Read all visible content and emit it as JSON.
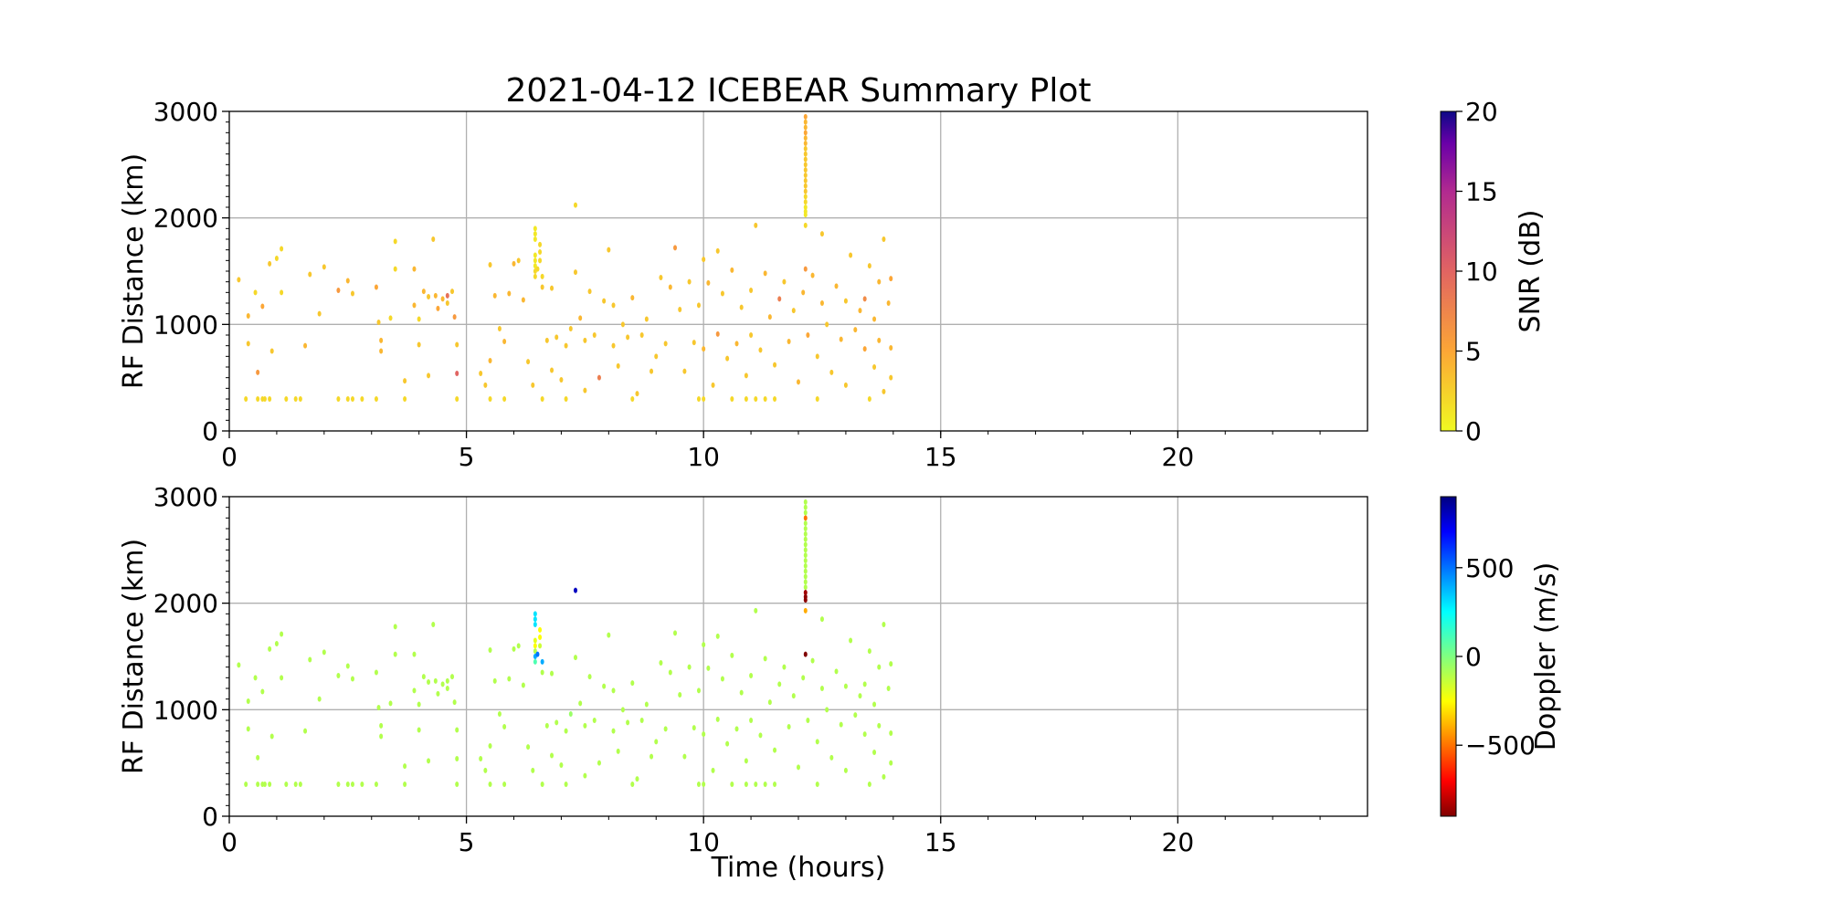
{
  "chart_data": {
    "type": "scatter",
    "title": "2021-04-12 ICEBEAR Summary Plot",
    "xlabel": "Time (hours)",
    "xlim": [
      0,
      24
    ],
    "x_ticks": [
      0,
      5,
      10,
      15,
      20
    ],
    "grid": true,
    "panels": [
      {
        "ylabel": "RF Distance (km)",
        "ylim": [
          0,
          3000
        ],
        "y_ticks": [
          0,
          1000,
          2000,
          3000
        ],
        "color_by": "snr",
        "colorbar": {
          "label": "SNR (dB)",
          "range": [
            0,
            20
          ],
          "ticks": [
            0,
            5,
            10,
            15,
            20
          ],
          "colormap": "plasma_r"
        }
      },
      {
        "ylabel": "RF Distance (km)",
        "ylim": [
          0,
          3000
        ],
        "y_ticks": [
          0,
          1000,
          2000,
          3000
        ],
        "color_by": "doppler",
        "colorbar": {
          "label": "Doppler (m/s)",
          "range": [
            -900,
            900
          ],
          "ticks": [
            -500,
            0,
            500
          ],
          "tick_labels": [
            "−500",
            "0",
            "500"
          ],
          "colormap": "jet"
        }
      }
    ],
    "point_fields": [
      "time_hours",
      "rf_distance_km",
      "snr_db",
      "doppler_ms"
    ],
    "points": [
      [
        0.35,
        300,
        2,
        -100
      ],
      [
        0.6,
        300,
        2,
        -100
      ],
      [
        0.7,
        300,
        2,
        -100
      ],
      [
        0.75,
        300,
        2,
        -100
      ],
      [
        0.85,
        300,
        2,
        -100
      ],
      [
        1.2,
        300,
        2,
        -100
      ],
      [
        1.4,
        300,
        2,
        -100
      ],
      [
        1.5,
        300,
        2,
        -100
      ],
      [
        2.3,
        300,
        2,
        -100
      ],
      [
        2.5,
        300,
        2,
        -100
      ],
      [
        2.6,
        300,
        2,
        -100
      ],
      [
        2.8,
        300,
        2,
        -100
      ],
      [
        3.1,
        300,
        2,
        -100
      ],
      [
        3.7,
        300,
        2,
        -100
      ],
      [
        4.8,
        300,
        2,
        -100
      ],
      [
        5.5,
        300,
        2,
        -100
      ],
      [
        5.8,
        300,
        2,
        -100
      ],
      [
        6.6,
        300,
        2,
        -100
      ],
      [
        7.1,
        300,
        2,
        -100
      ],
      [
        8.5,
        300,
        2,
        -100
      ],
      [
        9.9,
        300,
        2,
        -100
      ],
      [
        10.0,
        300,
        2,
        -100
      ],
      [
        10.6,
        300,
        2,
        -100
      ],
      [
        10.9,
        300,
        2,
        -100
      ],
      [
        11.1,
        300,
        2,
        -100
      ],
      [
        11.3,
        300,
        2,
        -100
      ],
      [
        11.5,
        300,
        2,
        -100
      ],
      [
        12.4,
        300,
        2,
        -100
      ],
      [
        13.5,
        300,
        2,
        -100
      ],
      [
        0.2,
        1420,
        3,
        -100
      ],
      [
        0.4,
        1080,
        4,
        -100
      ],
      [
        0.4,
        820,
        3,
        -100
      ],
      [
        0.55,
        1300,
        2,
        -100
      ],
      [
        0.6,
        550,
        6,
        -100
      ],
      [
        0.7,
        1170,
        5,
        -100
      ],
      [
        0.85,
        1570,
        3,
        -100
      ],
      [
        0.9,
        750,
        3,
        -100
      ],
      [
        1.0,
        1620,
        2,
        -100
      ],
      [
        1.1,
        1300,
        2,
        -100
      ],
      [
        1.1,
        1710,
        2,
        -100
      ],
      [
        1.6,
        800,
        4,
        -100
      ],
      [
        1.7,
        1470,
        3,
        -100
      ],
      [
        1.9,
        1100,
        3,
        -100
      ],
      [
        2.0,
        1540,
        3,
        -100
      ],
      [
        2.3,
        1320,
        6,
        -100
      ],
      [
        2.5,
        1410,
        4,
        -100
      ],
      [
        2.6,
        1290,
        3,
        -100
      ],
      [
        3.1,
        1350,
        5,
        -100
      ],
      [
        3.15,
        1020,
        3,
        -100
      ],
      [
        3.2,
        850,
        4,
        -100
      ],
      [
        3.2,
        750,
        4,
        -100
      ],
      [
        3.4,
        1060,
        2,
        -100
      ],
      [
        3.5,
        1520,
        2,
        -100
      ],
      [
        3.5,
        1780,
        2,
        -100
      ],
      [
        3.7,
        470,
        3,
        -100
      ],
      [
        3.9,
        1520,
        4,
        -100
      ],
      [
        3.9,
        1180,
        4,
        -100
      ],
      [
        4.0,
        810,
        3,
        -100
      ],
      [
        4.0,
        1050,
        2,
        -100
      ],
      [
        4.1,
        1310,
        4,
        -100
      ],
      [
        4.2,
        1260,
        3,
        -100
      ],
      [
        4.2,
        520,
        3,
        -100
      ],
      [
        4.3,
        1800,
        3,
        -100
      ],
      [
        4.35,
        1270,
        4,
        -100
      ],
      [
        4.4,
        1150,
        5,
        -100
      ],
      [
        4.5,
        1240,
        4,
        -100
      ],
      [
        4.6,
        1270,
        9,
        -100
      ],
      [
        4.6,
        1200,
        3,
        -100
      ],
      [
        4.7,
        1310,
        3,
        -100
      ],
      [
        4.75,
        1070,
        6,
        -100
      ],
      [
        4.8,
        810,
        3,
        -100
      ],
      [
        4.8,
        540,
        10,
        -100
      ],
      [
        5.3,
        540,
        3,
        -100
      ],
      [
        5.4,
        430,
        3,
        -100
      ],
      [
        5.5,
        1560,
        3,
        -100
      ],
      [
        5.5,
        660,
        4,
        -100
      ],
      [
        5.6,
        1270,
        4,
        -100
      ],
      [
        5.7,
        960,
        3,
        -100
      ],
      [
        5.8,
        840,
        4,
        -100
      ],
      [
        5.9,
        1290,
        4,
        -100
      ],
      [
        6.0,
        1570,
        4,
        -100
      ],
      [
        6.1,
        1600,
        3,
        -100
      ],
      [
        6.2,
        1230,
        4,
        -100
      ],
      [
        6.3,
        650,
        3,
        -100
      ],
      [
        6.4,
        430,
        3,
        -100
      ],
      [
        6.6,
        1350,
        3,
        -100
      ],
      [
        6.7,
        850,
        3,
        -100
      ],
      [
        6.8,
        1340,
        3,
        -100
      ],
      [
        6.8,
        570,
        3,
        -100
      ],
      [
        6.9,
        880,
        3,
        -100
      ],
      [
        7.0,
        480,
        3,
        -100
      ],
      [
        7.1,
        800,
        3,
        -100
      ],
      [
        7.2,
        960,
        3,
        -50
      ],
      [
        7.3,
        1490,
        3,
        -100
      ],
      [
        7.3,
        2120,
        2,
        800
      ],
      [
        7.4,
        1060,
        4,
        -100
      ],
      [
        7.5,
        850,
        3,
        -100
      ],
      [
        7.5,
        380,
        3,
        -100
      ],
      [
        7.6,
        1310,
        3,
        -100
      ],
      [
        7.7,
        900,
        3,
        -100
      ],
      [
        7.8,
        500,
        8,
        -100
      ],
      [
        7.9,
        1220,
        3,
        -100
      ],
      [
        8.0,
        1700,
        3,
        -100
      ],
      [
        8.1,
        800,
        3,
        -100
      ],
      [
        8.1,
        1180,
        3,
        -100
      ],
      [
        8.2,
        610,
        3,
        -100
      ],
      [
        8.3,
        1000,
        3,
        -100
      ],
      [
        8.4,
        880,
        3,
        -100
      ],
      [
        8.5,
        1250,
        4,
        -100
      ],
      [
        8.6,
        350,
        3,
        -100
      ],
      [
        8.7,
        900,
        3,
        -100
      ],
      [
        8.8,
        1050,
        3,
        -100
      ],
      [
        8.9,
        560,
        3,
        -100
      ],
      [
        9.0,
        700,
        3,
        -100
      ],
      [
        9.1,
        1440,
        3,
        -100
      ],
      [
        9.2,
        820,
        3,
        -100
      ],
      [
        9.3,
        1350,
        4,
        -100
      ],
      [
        9.4,
        1720,
        6,
        -100
      ],
      [
        9.5,
        1140,
        3,
        -100
      ],
      [
        9.6,
        560,
        3,
        -100
      ],
      [
        9.7,
        1400,
        3,
        -100
      ],
      [
        9.8,
        830,
        3,
        -100
      ],
      [
        9.9,
        1180,
        3,
        -100
      ],
      [
        10.0,
        1610,
        3,
        -100
      ],
      [
        10.0,
        770,
        4,
        -100
      ],
      [
        10.1,
        1390,
        4,
        -100
      ],
      [
        10.2,
        430,
        3,
        -100
      ],
      [
        10.3,
        1690,
        3,
        -100
      ],
      [
        10.3,
        910,
        6,
        -100
      ],
      [
        10.4,
        1290,
        3,
        -100
      ],
      [
        10.5,
        680,
        3,
        -100
      ],
      [
        10.6,
        1510,
        4,
        -100
      ],
      [
        10.7,
        820,
        4,
        -100
      ],
      [
        10.8,
        1160,
        3,
        -100
      ],
      [
        10.9,
        520,
        3,
        -100
      ],
      [
        11.0,
        1320,
        3,
        -100
      ],
      [
        11.0,
        900,
        3,
        -100
      ],
      [
        11.1,
        1930,
        3,
        -100
      ],
      [
        11.2,
        760,
        3,
        -100
      ],
      [
        11.3,
        1480,
        4,
        -100
      ],
      [
        11.4,
        1070,
        4,
        -100
      ],
      [
        11.5,
        620,
        3,
        -100
      ],
      [
        11.6,
        1240,
        8,
        -100
      ],
      [
        11.7,
        1400,
        3,
        -100
      ],
      [
        11.8,
        840,
        4,
        -100
      ],
      [
        11.9,
        1130,
        3,
        -100
      ],
      [
        12.0,
        460,
        4,
        -100
      ],
      [
        12.1,
        1300,
        4,
        -100
      ],
      [
        12.15,
        1520,
        6,
        -900
      ],
      [
        12.15,
        1930,
        2,
        -400
      ],
      [
        12.2,
        900,
        5,
        -100
      ],
      [
        12.3,
        1460,
        4,
        -100
      ],
      [
        12.4,
        700,
        3,
        -100
      ],
      [
        12.5,
        1850,
        3,
        -100
      ],
      [
        12.5,
        1200,
        4,
        -100
      ],
      [
        12.6,
        1000,
        3,
        -100
      ],
      [
        12.7,
        550,
        3,
        -100
      ],
      [
        12.8,
        1360,
        4,
        -100
      ],
      [
        12.9,
        860,
        4,
        -100
      ],
      [
        13.0,
        1220,
        3,
        -100
      ],
      [
        13.0,
        430,
        3,
        -100
      ],
      [
        13.1,
        1650,
        3,
        -100
      ],
      [
        13.2,
        950,
        4,
        -100
      ],
      [
        13.3,
        1130,
        4,
        -100
      ],
      [
        13.4,
        770,
        5,
        -100
      ],
      [
        13.4,
        1240,
        7,
        -100
      ],
      [
        13.5,
        1550,
        3,
        -100
      ],
      [
        13.6,
        1050,
        4,
        -100
      ],
      [
        13.6,
        600,
        3,
        -100
      ],
      [
        13.7,
        1400,
        4,
        -100
      ],
      [
        13.7,
        850,
        4,
        -100
      ],
      [
        13.8,
        1800,
        3,
        -100
      ],
      [
        13.8,
        370,
        3,
        -100
      ],
      [
        13.9,
        1200,
        4,
        -100
      ],
      [
        13.95,
        1430,
        5,
        -100
      ],
      [
        13.95,
        780,
        4,
        -100
      ],
      [
        13.95,
        500,
        3,
        -100
      ],
      [
        6.45,
        1900,
        1,
        300
      ],
      [
        6.45,
        1850,
        1,
        300
      ],
      [
        6.45,
        1800,
        1,
        300
      ],
      [
        6.45,
        1650,
        1,
        -200
      ],
      [
        6.45,
        1600,
        1,
        -250
      ],
      [
        6.45,
        1550,
        1,
        -100
      ],
      [
        6.45,
        1500,
        2,
        400
      ],
      [
        6.45,
        1450,
        2,
        100
      ],
      [
        6.5,
        1520,
        2,
        500
      ],
      [
        6.55,
        1750,
        2,
        -250
      ],
      [
        6.55,
        1680,
        2,
        -250
      ],
      [
        6.55,
        1600,
        2,
        -150
      ],
      [
        6.6,
        1450,
        2,
        400
      ],
      [
        12.15,
        2950,
        5,
        -100
      ],
      [
        12.15,
        2900,
        4,
        -100
      ],
      [
        12.15,
        2850,
        4,
        -100
      ],
      [
        12.15,
        2800,
        5,
        -500
      ],
      [
        12.15,
        2750,
        4,
        -100
      ],
      [
        12.15,
        2700,
        4,
        -100
      ],
      [
        12.15,
        2650,
        3,
        -100
      ],
      [
        12.15,
        2600,
        3,
        -100
      ],
      [
        12.15,
        2550,
        3,
        -100
      ],
      [
        12.15,
        2500,
        3,
        -100
      ],
      [
        12.15,
        2450,
        3,
        -100
      ],
      [
        12.15,
        2400,
        3,
        -100
      ],
      [
        12.15,
        2350,
        3,
        -100
      ],
      [
        12.15,
        2300,
        3,
        -100
      ],
      [
        12.15,
        2250,
        3,
        -100
      ],
      [
        12.15,
        2200,
        2,
        -100
      ],
      [
        12.15,
        2150,
        2,
        -100
      ],
      [
        12.15,
        2100,
        1,
        -850
      ],
      [
        12.15,
        2060,
        1,
        -880
      ],
      [
        12.15,
        2030,
        1,
        -880
      ]
    ]
  }
}
